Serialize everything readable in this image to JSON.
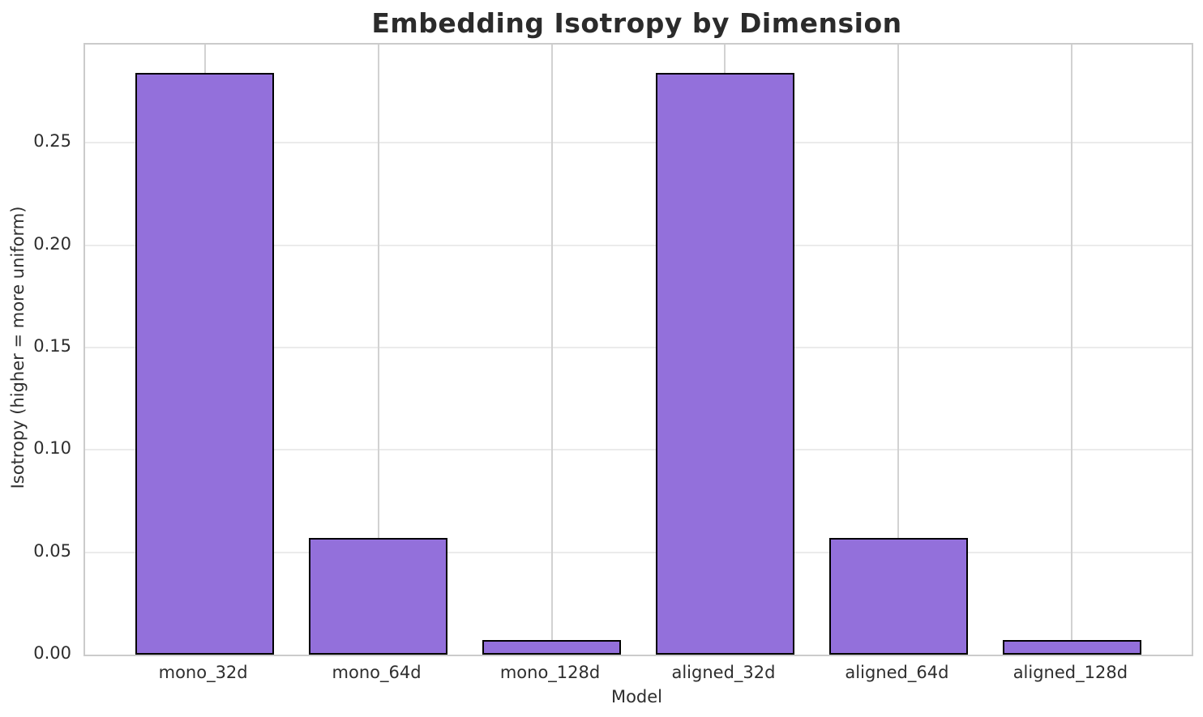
{
  "chart_data": {
    "type": "bar",
    "title": "Embedding Isotropy by Dimension",
    "xlabel": "Model",
    "ylabel": "Isotropy (higher = more uniform)",
    "categories": [
      "mono_32d",
      "mono_64d",
      "mono_128d",
      "aligned_32d",
      "aligned_64d",
      "aligned_128d"
    ],
    "values": [
      0.284,
      0.057,
      0.007,
      0.284,
      0.057,
      0.007
    ],
    "ylim": [
      0,
      0.298
    ],
    "xlim": [
      -0.69,
      5.69
    ],
    "bar_width": 0.8,
    "yticks": [
      0,
      0.05,
      0.1,
      0.15,
      0.2,
      0.25
    ],
    "ytick_labels": [
      "0.00",
      "0.05",
      "0.10",
      "0.15",
      "0.20",
      "0.25"
    ],
    "grid": "both",
    "legend_position": "none",
    "colors": {
      "bar_fill": "#9370DB",
      "bar_edge": "#000000",
      "spine": "#cbcbcb",
      "vgrid": "#d2d2d2",
      "hgrid": "#ebebeb",
      "text": "#2e2e2e",
      "title": "#2b2b2b",
      "background": "#ffffff"
    }
  }
}
